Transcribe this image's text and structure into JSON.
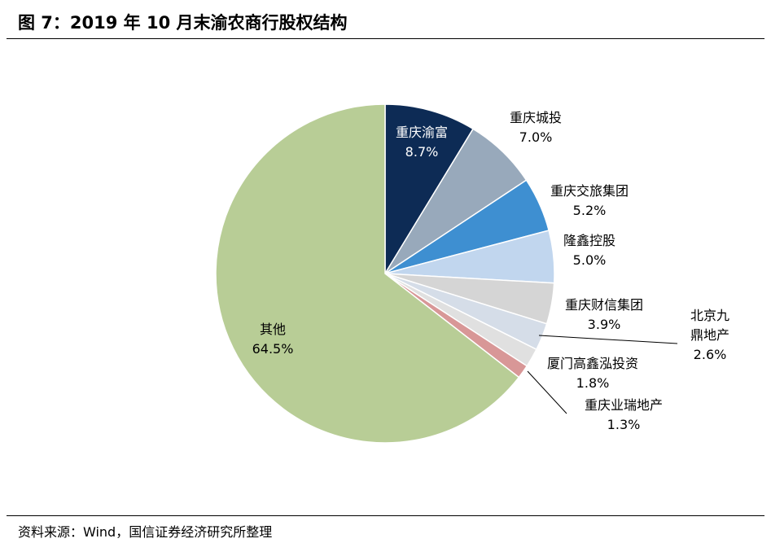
{
  "figure": {
    "title": "图 7：2019 年 10 月末渝农商行股权结构",
    "source": "资料来源：Wind，国信证券经济研究所整理"
  },
  "chart_data": {
    "type": "pie",
    "start_angle_deg": 90,
    "direction": "clockwise",
    "slices": [
      {
        "label": "重庆渝富",
        "value": 8.7,
        "pct": "8.7%",
        "color": "#0d2b55"
      },
      {
        "label": "重庆城投",
        "value": 7.0,
        "pct": "7.0%",
        "color": "#98a9bb"
      },
      {
        "label": "重庆交旅集团",
        "value": 5.2,
        "pct": "5.2%",
        "color": "#3e8fd1"
      },
      {
        "label": "隆鑫控股",
        "value": 5.0,
        "pct": "5.0%",
        "color": "#c1d6ee"
      },
      {
        "label": "重庆财信集团",
        "value": 3.9,
        "pct": "3.9%",
        "color": "#d5d5d5"
      },
      {
        "label": "北京九鼎地产",
        "value": 2.6,
        "pct": "2.6%",
        "color": "#d5dde8"
      },
      {
        "label": "厦门高鑫泓投资",
        "value": 1.8,
        "pct": "1.8%",
        "color": "#e0e0e0"
      },
      {
        "label": "重庆业瑞地产",
        "value": 1.3,
        "pct": "1.3%",
        "color": "#d89797"
      },
      {
        "label": "其他",
        "value": 64.5,
        "pct": "64.5%",
        "color": "#b8cd96"
      }
    ]
  }
}
